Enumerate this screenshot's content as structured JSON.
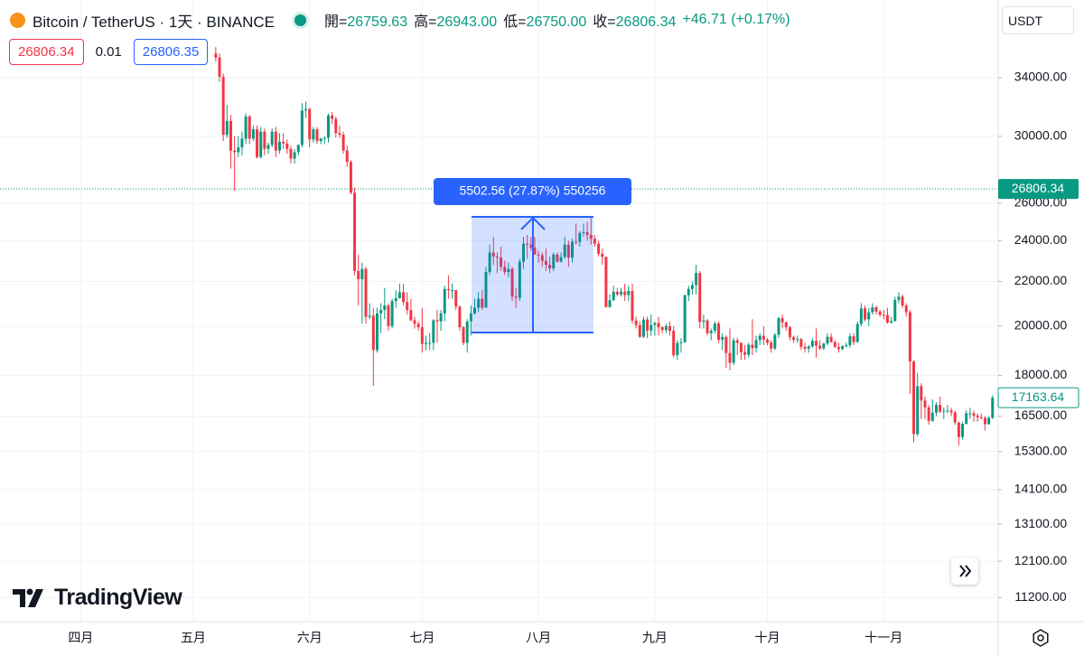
{
  "header": {
    "symbol": "Bitcoin / TetherUS · 1天 · BINANCE",
    "ohlc": [
      {
        "label": "開=",
        "value": "26759.63"
      },
      {
        "label": "高=",
        "value": "26943.00"
      },
      {
        "label": "低=",
        "value": "26750.00"
      },
      {
        "label": "收=",
        "value": "26806.34"
      }
    ],
    "change": "+46.71 (+0.17%)"
  },
  "trade": {
    "sell": "26806.34",
    "quantity": "0.01",
    "buy": "26806.35"
  },
  "currency": "USDT",
  "brand": "TradingView",
  "measure": {
    "label": "5502.56 (27.87%) 550256"
  },
  "chart_data": {
    "type": "candlestick",
    "log_scale": true,
    "grid": true,
    "up_color": "#089981",
    "down_color": "#f23645",
    "current_price": 26806.34,
    "current_price_color": "#089981",
    "ylim": [
      10636,
      40140
    ],
    "yticks": [
      {
        "value": 34000,
        "label": "34000.00"
      },
      {
        "value": 30000,
        "label": "30000.00"
      },
      {
        "value": 26000,
        "label": "26000.00"
      },
      {
        "value": 24000,
        "label": "24000.00"
      },
      {
        "value": 22000,
        "label": "22000.00"
      },
      {
        "value": 20000,
        "label": "20000.00"
      },
      {
        "value": 18000,
        "label": "18000.00"
      },
      {
        "value": 16500,
        "label": "16500.00"
      },
      {
        "value": 15300,
        "label": "15300.00"
      },
      {
        "value": 14100,
        "label": "14100.00"
      },
      {
        "value": 13100,
        "label": "13100.00"
      },
      {
        "value": 12100,
        "label": "12100.00"
      },
      {
        "value": 11200,
        "label": "11200.00"
      }
    ],
    "categories": [
      null,
      null,
      null,
      null,
      null,
      null,
      null,
      null,
      null,
      null,
      null,
      null,
      null,
      null,
      null,
      null,
      null,
      null,
      null,
      null,
      null,
      "四月",
      null,
      null,
      null,
      null,
      null,
      null,
      null,
      null,
      null,
      null,
      null,
      null,
      null,
      null,
      null,
      null,
      null,
      null,
      null,
      null,
      null,
      null,
      null,
      null,
      null,
      null,
      null,
      null,
      null,
      "五月",
      null,
      null,
      null,
      null,
      null,
      null,
      null,
      null,
      null,
      null,
      null,
      null,
      null,
      null,
      null,
      null,
      null,
      null,
      null,
      null,
      null,
      null,
      null,
      null,
      null,
      null,
      null,
      null,
      null,
      null,
      "六月",
      null,
      null,
      null,
      null,
      null,
      null,
      null,
      null,
      null,
      null,
      null,
      null,
      null,
      null,
      null,
      null,
      null,
      null,
      null,
      null,
      null,
      null,
      null,
      null,
      null,
      null,
      null,
      null,
      null,
      "七月",
      null,
      null,
      null,
      null,
      null,
      null,
      null,
      null,
      null,
      null,
      null,
      null,
      null,
      null,
      null,
      null,
      null,
      null,
      null,
      null,
      null,
      null,
      null,
      null,
      null,
      null,
      null,
      null,
      null,
      null,
      "八月",
      null,
      null,
      null,
      null,
      null,
      null,
      null,
      null,
      null,
      null,
      null,
      null,
      null,
      null,
      null,
      null,
      null,
      null,
      null,
      null,
      null,
      null,
      null,
      null,
      null,
      null,
      null,
      null,
      null,
      null,
      "九月",
      null,
      null,
      null,
      null,
      null,
      null,
      null,
      null,
      null,
      null,
      null,
      null,
      null,
      null,
      null,
      null,
      null,
      null,
      null,
      null,
      null,
      null,
      null,
      null,
      null,
      null,
      null,
      null,
      null,
      "十月",
      null,
      null,
      null,
      null,
      null,
      null,
      null,
      null,
      null,
      null,
      null,
      null,
      null,
      null,
      null,
      null,
      null,
      null,
      null,
      null,
      null,
      null,
      null,
      null,
      null,
      null,
      null,
      null,
      null,
      null,
      "十一月",
      null,
      null,
      null,
      null,
      null,
      null,
      null,
      null,
      null,
      null,
      null,
      null,
      null,
      null,
      null,
      null,
      null,
      null,
      null,
      null,
      null,
      null,
      null,
      null,
      null,
      null,
      null,
      null,
      null,
      null
    ],
    "open": [
      null,
      null,
      null,
      null,
      null,
      null,
      null,
      null,
      null,
      null,
      null,
      null,
      null,
      null,
      null,
      null,
      null,
      null,
      null,
      null,
      null,
      null,
      null,
      null,
      null,
      null,
      null,
      null,
      null,
      null,
      null,
      null,
      null,
      null,
      null,
      null,
      null,
      null,
      null,
      null,
      null,
      null,
      null,
      null,
      null,
      null,
      null,
      null,
      null,
      null,
      null,
      null,
      null,
      null,
      null,
      null,
      null,
      35800,
      35500,
      34060,
      30100,
      31000,
      29100,
      29000,
      29300,
      29850,
      31300,
      29850,
      30450,
      28700,
      30300,
      29200,
      29450,
      30300,
      29100,
      29650,
      29540,
      29200,
      28600,
      29000,
      29450,
      31700,
      31800,
      29800,
      30450,
      29700,
      29860,
      29900,
      31370,
      31130,
      30200,
      30100,
      29100,
      28400,
      26600,
      22500,
      22100,
      22600,
      20400,
      20450,
      19000,
      20550,
      20700,
      20900,
      20000,
      21100,
      21230,
      21500,
      21050,
      20700,
      20250,
      20100,
      19950,
      19250,
      19300,
      19300,
      20250,
      20200,
      20550,
      21650,
      21600,
      21600,
      20850,
      19950,
      19300,
      20200,
      20550,
      20800,
      21200,
      20800,
      22450,
      23400,
      23200,
      23150,
      22700,
      22450,
      22600,
      21300,
      21250,
      22950,
      23850,
      23800,
      23650,
      23300,
      23270,
      22990,
      22800,
      22620,
      23300,
      22950,
      23180,
      23800,
      23150,
      23950,
      23940,
      24400,
      24440,
      24300,
      24100,
      23850,
      23340,
      23190,
      20830,
      21140,
      21520,
      21400,
      21530,
      21370,
      21560,
      20240,
      20040,
      19550,
      20280,
      19810,
      20050,
      20130,
      19950,
      19830,
      20000,
      19800,
      18790,
      19290,
      19320,
      21360,
      21650,
      21830,
      22400,
      20180,
      20240,
      19700,
      19800,
      20110,
      19420,
      19540,
      18880,
      18490,
      19400,
      19300,
      18920,
      18810,
      19220,
      19080,
      19410,
      19590,
      19430,
      19310,
      19060,
      19630,
      20340,
      20160,
      19950,
      19530,
      19420,
      19450,
      19130,
      19060,
      19150,
      19380,
      19180,
      19070,
      19270,
      19550,
      19330,
      19120,
      19040,
      19160,
      19200,
      19570,
      19330,
      20090,
      20770,
      20290,
      20600,
      20820,
      20630,
      20490,
      20480,
      20150,
      20210,
      21150,
      21300,
      20900,
      20600,
      18540,
      15880,
      17590,
      17060,
      16810,
      16330,
      16620,
      16900,
      16660,
      16690,
      16700,
      16630,
      16280,
      15780,
      16230,
      16600,
      16600,
      16520,
      16460,
      16440,
      16220,
      16440,
      null
    ],
    "high": [
      null,
      null,
      null,
      null,
      null,
      null,
      null,
      null,
      null,
      null,
      null,
      null,
      null,
      null,
      null,
      null,
      null,
      null,
      null,
      null,
      null,
      null,
      null,
      null,
      null,
      null,
      null,
      null,
      null,
      null,
      null,
      null,
      null,
      null,
      null,
      null,
      null,
      null,
      null,
      null,
      null,
      null,
      null,
      null,
      null,
      null,
      null,
      null,
      null,
      null,
      null,
      null,
      null,
      null,
      null,
      null,
      null,
      36300,
      35800,
      34300,
      32100,
      31400,
      30000,
      30000,
      30300,
      31500,
      31400,
      30700,
      30700,
      30600,
      30500,
      29600,
      30500,
      30600,
      30200,
      30200,
      29800,
      29400,
      29200,
      29500,
      32200,
      32300,
      31900,
      30600,
      30600,
      29900,
      30000,
      31500,
      31600,
      31300,
      30700,
      30300,
      29400,
      28500,
      26900,
      23300,
      22900,
      22700,
      21000,
      20800,
      20800,
      21000,
      21700,
      21000,
      21200,
      21600,
      21900,
      21900,
      21500,
      21200,
      20400,
      20200,
      20800,
      19600,
      19700,
      20300,
      20700,
      20700,
      21800,
      22300,
      21900,
      21600,
      20900,
      20000,
      20300,
      20900,
      21200,
      21500,
      21600,
      22700,
      23800,
      24200,
      23400,
      23700,
      23000,
      22900,
      22700,
      21700,
      23100,
      24200,
      24300,
      24200,
      24200,
      23500,
      23400,
      23600,
      23200,
      23400,
      23400,
      23400,
      24200,
      24000,
      24100,
      24900,
      24500,
      24900,
      25000,
      25200,
      24300,
      24000,
      23600,
      23200,
      21400,
      21800,
      21700,
      21700,
      21900,
      21800,
      21900,
      20400,
      20200,
      20400,
      20400,
      20500,
      20200,
      20400,
      20000,
      20100,
      20200,
      20000,
      19400,
      19500,
      21400,
      21800,
      22000,
      22800,
      22500,
      20500,
      20300,
      19900,
      20200,
      20200,
      19700,
      19600,
      19900,
      19500,
      19500,
      19300,
      19200,
      19300,
      20300,
      19600,
      19700,
      20000,
      19500,
      19400,
      19700,
      20400,
      20500,
      20200,
      20000,
      19600,
      19600,
      19500,
      19300,
      19200,
      19500,
      19900,
      19400,
      19300,
      19700,
      19700,
      19400,
      19300,
      19200,
      19300,
      19700,
      19700,
      20200,
      21000,
      20900,
      20800,
      21000,
      20900,
      20700,
      20700,
      20800,
      20400,
      21300,
      21500,
      21400,
      21000,
      20700,
      18600,
      18100,
      17700,
      17200,
      16900,
      17100,
      17000,
      17200,
      16800,
      16900,
      16800,
      16700,
      16300,
      16300,
      16700,
      16800,
      16700,
      16600,
      16600,
      16500,
      16500,
      17250,
      null
    ],
    "low": [
      null,
      null,
      null,
      null,
      null,
      null,
      null,
      null,
      null,
      null,
      null,
      null,
      null,
      null,
      null,
      null,
      null,
      null,
      null,
      null,
      null,
      null,
      null,
      null,
      null,
      null,
      null,
      null,
      null,
      null,
      null,
      null,
      null,
      null,
      null,
      null,
      null,
      null,
      null,
      null,
      null,
      null,
      null,
      null,
      null,
      null,
      null,
      null,
      null,
      null,
      null,
      null,
      null,
      null,
      null,
      null,
      null,
      35200,
      33700,
      29700,
      29900,
      28000,
      26700,
      28700,
      28800,
      29500,
      29500,
      29700,
      28600,
      28600,
      28800,
      28900,
      29300,
      28700,
      28900,
      29200,
      28900,
      28300,
      28300,
      28800,
      29300,
      31200,
      29300,
      29600,
      29500,
      29500,
      29500,
      29600,
      30800,
      29900,
      29900,
      28900,
      28100,
      26500,
      22300,
      20900,
      20100,
      20100,
      20300,
      17600,
      18900,
      19700,
      20300,
      19800,
      19900,
      20800,
      21200,
      20900,
      20500,
      20200,
      19900,
      19800,
      18900,
      19000,
      19000,
      19000,
      19300,
      19800,
      20200,
      21200,
      21200,
      20700,
      19800,
      19200,
      18900,
      19600,
      20500,
      20600,
      20700,
      20800,
      22300,
      22800,
      22400,
      22500,
      22300,
      22200,
      21100,
      20800,
      21100,
      22600,
      23100,
      23500,
      23300,
      22900,
      22700,
      22500,
      22400,
      22500,
      22900,
      22900,
      23100,
      22700,
      22900,
      23800,
      23700,
      24200,
      24000,
      23800,
      23700,
      23200,
      22800,
      20800,
      20800,
      21100,
      21300,
      21300,
      21100,
      21100,
      20100,
      19900,
      19500,
      19500,
      19500,
      19600,
      19600,
      19600,
      19700,
      19700,
      19600,
      18700,
      18600,
      18900,
      19300,
      21100,
      21400,
      21400,
      19900,
      19900,
      19600,
      19400,
      19700,
      19300,
      19000,
      18300,
      18200,
      18400,
      18800,
      18600,
      18600,
      18700,
      18800,
      18900,
      19200,
      19200,
      19200,
      18900,
      19000,
      19500,
      19900,
      19800,
      19400,
      19300,
      19300,
      19000,
      18900,
      18900,
      19100,
      18700,
      19000,
      19000,
      19200,
      19300,
      19100,
      18900,
      19000,
      19100,
      19100,
      19200,
      19300,
      20000,
      20200,
      20000,
      20500,
      20500,
      20400,
      20300,
      20100,
      20100,
      20200,
      21000,
      20800,
      20400,
      17300,
      15600,
      15800,
      16400,
      16400,
      16200,
      16300,
      16500,
      16600,
      16400,
      16600,
      16500,
      16200,
      15500,
      15700,
      16200,
      16400,
      16300,
      16300,
      16400,
      16000,
      16200,
      16400,
      null
    ],
    "close": [
      null,
      null,
      null,
      null,
      null,
      null,
      null,
      null,
      null,
      null,
      null,
      null,
      null,
      null,
      null,
      null,
      null,
      null,
      null,
      null,
      null,
      null,
      null,
      null,
      null,
      null,
      null,
      null,
      null,
      null,
      null,
      null,
      null,
      null,
      null,
      null,
      null,
      null,
      null,
      null,
      null,
      null,
      null,
      null,
      null,
      null,
      null,
      null,
      null,
      null,
      null,
      null,
      null,
      null,
      null,
      null,
      null,
      35500,
      34060,
      30100,
      31000,
      29100,
      29000,
      29300,
      29850,
      31300,
      29850,
      30450,
      28700,
      30300,
      29200,
      29450,
      30300,
      29100,
      29650,
      29540,
      29200,
      28600,
      29000,
      29450,
      31700,
      31800,
      29800,
      30450,
      29700,
      29860,
      29900,
      31370,
      31130,
      30200,
      30100,
      29100,
      28400,
      26600,
      22500,
      22100,
      22600,
      20400,
      20450,
      19000,
      20550,
      20700,
      20900,
      20000,
      21100,
      21230,
      21500,
      21050,
      20700,
      20250,
      20100,
      19950,
      19250,
      19300,
      19300,
      20250,
      20200,
      20550,
      21650,
      21600,
      21600,
      20850,
      19950,
      19300,
      20200,
      20550,
      20800,
      21200,
      20800,
      22450,
      23400,
      23200,
      23150,
      22700,
      22450,
      22600,
      21300,
      21250,
      22950,
      23850,
      23800,
      23650,
      23300,
      23270,
      22990,
      22800,
      22620,
      23300,
      22950,
      23180,
      23800,
      23150,
      23950,
      23940,
      24400,
      24440,
      24300,
      24100,
      23850,
      23340,
      23190,
      20830,
      21140,
      21520,
      21400,
      21530,
      21370,
      21560,
      20240,
      20040,
      19550,
      20280,
      19810,
      20050,
      20130,
      19950,
      19830,
      20000,
      19800,
      18790,
      19290,
      19320,
      21360,
      21650,
      21830,
      22400,
      20180,
      20240,
      19700,
      19800,
      20110,
      19420,
      19540,
      18880,
      18490,
      19400,
      19300,
      18920,
      18810,
      19220,
      19080,
      19410,
      19590,
      19430,
      19310,
      19060,
      19630,
      20340,
      20160,
      19950,
      19530,
      19420,
      19450,
      19130,
      19060,
      19150,
      19380,
      19180,
      19070,
      19270,
      19550,
      19330,
      19120,
      19040,
      19160,
      19200,
      19570,
      19330,
      20090,
      20770,
      20290,
      20600,
      20820,
      20630,
      20490,
      20480,
      20150,
      20210,
      21150,
      21300,
      20900,
      20600,
      18540,
      15880,
      17590,
      17060,
      16810,
      16330,
      16620,
      16900,
      16660,
      16690,
      16700,
      16630,
      16280,
      15780,
      16230,
      16600,
      16600,
      16520,
      16460,
      16440,
      16220,
      16440,
      17163.64,
      null
    ]
  }
}
